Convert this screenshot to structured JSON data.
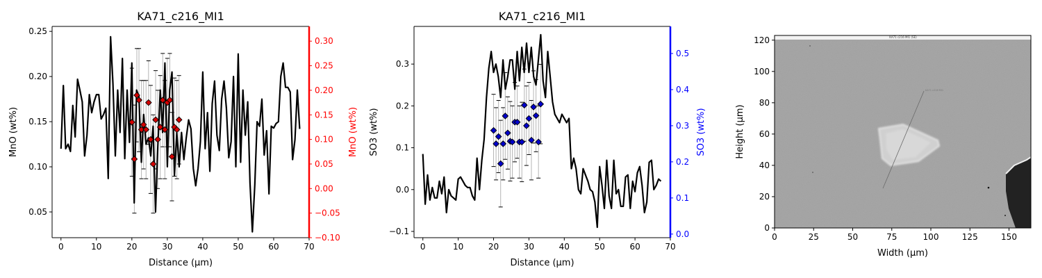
{
  "chart_data": [
    {
      "type": "line",
      "title": "KA71_c216_MI1",
      "xlabel": "Distance (µm)",
      "ylabel": "MnO (wt%)",
      "ylabel_right": "MnO (wt%)",
      "xlim": [
        -2.5,
        70
      ],
      "ylim": [
        0.0215,
        0.2555
      ],
      "ylim_right": [
        -0.1,
        0.33
      ],
      "xticks": [
        0,
        10,
        20,
        30,
        40,
        50,
        60,
        70
      ],
      "yticks": [
        0.05,
        0.1,
        0.15,
        0.2,
        0.25
      ],
      "yticks_right": [
        -0.1,
        -0.05,
        0.0,
        0.05,
        0.1,
        0.15,
        0.2,
        0.25,
        0.3
      ],
      "right_axis_color": "#ff0000",
      "line_color": "#000000",
      "marker_color": "#d40000",
      "marker": "diamond",
      "series": [
        {
          "axis": "left",
          "x": [
            0,
            0.67,
            1.33,
            2.0,
            2.67,
            3.33,
            4.0,
            4.67,
            5.33,
            6.0,
            6.67,
            7.33,
            8.0,
            8.67,
            9.33,
            10.0,
            10.67,
            11.33,
            12.0,
            12.67,
            13.33,
            14.0,
            14.67,
            15.33,
            16.0,
            16.67,
            17.33,
            18.0,
            18.67,
            19.33,
            20.0,
            20.67,
            21.33,
            22.0,
            22.67,
            23.33,
            24.0,
            24.67,
            25.33,
            26.0,
            26.67,
            27.33,
            28.0,
            28.67,
            29.33,
            30.0,
            30.67,
            31.33,
            32.0,
            32.67,
            33.33,
            34.0,
            34.67,
            35.33,
            36.0,
            36.67,
            37.33,
            38.0,
            38.67,
            39.33,
            40.0,
            40.67,
            41.33,
            42.0,
            42.67,
            43.33,
            44.0,
            44.67,
            45.33,
            46.0,
            46.67,
            47.33,
            48.0,
            48.67,
            49.33,
            50.0,
            50.67,
            51.33,
            52.0,
            52.67,
            53.33,
            54.0,
            54.67,
            55.33,
            56.0,
            56.67,
            57.33,
            58.0,
            58.67,
            59.33,
            60.0,
            60.67,
            61.33,
            62.0,
            62.67,
            63.33,
            64.0,
            64.67,
            65.33,
            66.0,
            66.67,
            67.33
          ],
          "y": [
            0.12,
            0.19,
            0.12,
            0.125,
            0.117,
            0.168,
            0.133,
            0.197,
            0.185,
            0.172,
            0.112,
            0.135,
            0.18,
            0.16,
            0.172,
            0.18,
            0.18,
            0.153,
            0.158,
            0.165,
            0.087,
            0.244,
            0.192,
            0.112,
            0.185,
            0.138,
            0.22,
            0.109,
            0.185,
            0.127,
            0.215,
            0.06,
            0.185,
            0.178,
            0.105,
            0.158,
            0.125,
            0.132,
            0.112,
            0.145,
            0.05,
            0.123,
            0.185,
            0.138,
            0.215,
            0.1,
            0.185,
            0.205,
            0.09,
            0.138,
            0.1,
            0.138,
            0.108,
            0.132,
            0.152,
            0.142,
            0.098,
            0.079,
            0.098,
            0.128,
            0.205,
            0.12,
            0.16,
            0.095,
            0.17,
            0.195,
            0.135,
            0.118,
            0.175,
            0.195,
            0.165,
            0.11,
            0.128,
            0.2,
            0.1,
            0.225,
            0.105,
            0.185,
            0.135,
            0.172,
            0.082,
            0.028,
            0.08,
            0.15,
            0.145,
            0.175,
            0.113,
            0.14,
            0.07,
            0.145,
            0.143,
            0.148,
            0.15,
            0.2,
            0.215,
            0.188,
            0.188,
            0.183,
            0.108,
            0.13,
            0.185,
            0.142
          ]
        },
        {
          "axis": "right",
          "x": [
            20.0,
            20.7,
            21.4,
            22.0,
            22.7,
            23.3,
            24.0,
            24.7,
            25.3,
            26.0,
            26.7,
            27.3,
            28.0,
            28.7,
            29.3,
            30.0,
            30.7,
            31.3,
            32.0,
            32.7,
            33.3
          ],
          "y": [
            0.135,
            0.06,
            0.19,
            0.18,
            0.12,
            0.13,
            0.12,
            0.175,
            0.1,
            0.05,
            0.14,
            0.1,
            0.125,
            0.18,
            0.12,
            0.175,
            0.18,
            0.065,
            0.125,
            0.12,
            0.14
          ],
          "err": [
            0.11,
            0.11,
            0.095,
            0.105,
            0.1,
            0.09,
            0.1,
            0.085,
            0.11,
            0.1,
            0.1,
            0.1,
            0.105,
            0.095,
            0.1,
            0.09,
            0.095,
            0.09,
            0.1,
            0.1,
            0.09
          ]
        }
      ]
    },
    {
      "type": "line",
      "title": "KA71_c216_MI1",
      "xlabel": "Distance (µm)",
      "ylabel": "SO3 (wt%)",
      "ylabel_right": "SO3 (wt%)",
      "xlim": [
        -2.5,
        70
      ],
      "ylim": [
        -0.115,
        0.39
      ],
      "ylim_right": [
        -0.01,
        0.575
      ],
      "xticks": [
        0,
        10,
        20,
        30,
        40,
        50,
        60,
        70
      ],
      "yticks": [
        -0.1,
        0.0,
        0.1,
        0.2,
        0.3
      ],
      "yticks_right": [
        0.0,
        0.1,
        0.2,
        0.3,
        0.4,
        0.5
      ],
      "right_axis_color": "#0000ff",
      "line_color": "#000000",
      "marker_color": "#0000cc",
      "marker": "diamond",
      "series": [
        {
          "axis": "left",
          "x": [
            0,
            0.67,
            1.33,
            2.0,
            2.67,
            3.33,
            4.0,
            4.67,
            5.33,
            6.0,
            6.67,
            7.33,
            8.0,
            8.67,
            9.33,
            10.0,
            10.67,
            11.33,
            12.0,
            12.67,
            13.33,
            14.0,
            14.67,
            15.33,
            16.0,
            16.67,
            17.33,
            18.0,
            18.67,
            19.33,
            20.0,
            20.67,
            21.33,
            22.0,
            22.67,
            23.33,
            24.0,
            24.67,
            25.33,
            26.0,
            26.67,
            27.33,
            28.0,
            28.67,
            29.33,
            30.0,
            30.67,
            31.33,
            32.0,
            32.67,
            33.33,
            34.0,
            34.67,
            35.33,
            36.0,
            36.67,
            37.33,
            38.0,
            38.67,
            39.33,
            40.0,
            40.67,
            41.33,
            42.0,
            42.67,
            43.33,
            44.0,
            44.67,
            45.33,
            46.0,
            46.67,
            47.33,
            48.0,
            48.67,
            49.33,
            50.0,
            50.67,
            51.33,
            52.0,
            52.67,
            53.33,
            54.0,
            54.67,
            55.33,
            56.0,
            56.67,
            57.33,
            58.0,
            58.67,
            59.33,
            60.0,
            60.67,
            61.33,
            62.0,
            62.67,
            63.33,
            64.0,
            64.67,
            65.33,
            66.0,
            66.67,
            67.33
          ],
          "y": [
            0.085,
            -0.035,
            0.035,
            -0.025,
            0.005,
            -0.02,
            -0.02,
            0.02,
            -0.01,
            0.03,
            -0.055,
            0.0,
            -0.015,
            -0.02,
            -0.025,
            0.025,
            0.03,
            0.02,
            0.01,
            0.005,
            0.005,
            -0.015,
            -0.025,
            0.075,
            0.0,
            0.07,
            0.12,
            0.22,
            0.29,
            0.33,
            0.28,
            0.3,
            0.27,
            0.22,
            0.31,
            0.24,
            0.27,
            0.31,
            0.31,
            0.24,
            0.33,
            0.26,
            0.34,
            0.28,
            0.35,
            0.28,
            0.34,
            0.27,
            0.25,
            0.31,
            0.37,
            0.26,
            0.22,
            0.33,
            0.27,
            0.21,
            0.18,
            0.17,
            0.16,
            0.18,
            0.17,
            0.16,
            0.17,
            0.05,
            0.075,
            0.05,
            0.0,
            -0.01,
            0.05,
            0.035,
            0.02,
            0.0,
            -0.005,
            -0.03,
            -0.09,
            0.055,
            0.01,
            -0.045,
            0.07,
            -0.015,
            -0.045,
            0.07,
            -0.01,
            0.0,
            -0.04,
            -0.04,
            0.03,
            0.035,
            -0.045,
            0.02,
            -0.005,
            0.04,
            0.055,
            0.01,
            -0.055,
            -0.03,
            0.065,
            0.07,
            0.0,
            0.01,
            0.025,
            0.02
          ]
        },
        {
          "axis": "right",
          "x": [
            20.0,
            20.7,
            21.4,
            22.0,
            22.7,
            23.3,
            24.0,
            24.7,
            25.3,
            26.0,
            26.7,
            27.3,
            28.0,
            28.7,
            29.3,
            30.0,
            30.7,
            31.3,
            32.0,
            32.7,
            33.3
          ],
          "y": [
            0.287,
            0.25,
            0.27,
            0.195,
            0.25,
            0.327,
            0.28,
            0.257,
            0.255,
            0.31,
            0.31,
            0.255,
            0.255,
            0.357,
            0.3,
            0.32,
            0.26,
            0.352,
            0.328,
            0.255,
            0.36
          ],
          "err": [
            0.1,
            0.1,
            0.1,
            0.12,
            0.1,
            0.12,
            0.1,
            0.11,
            0.1,
            0.11,
            0.1,
            0.1,
            0.11,
            0.1,
            0.11,
            0.1,
            0.11,
            0.1,
            0.1,
            0.1,
            0.11
          ]
        }
      ]
    },
    {
      "type": "image",
      "xlabel": "Width (µm)",
      "ylabel": "Height (µm)",
      "xlim": [
        0,
        164
      ],
      "ylim": [
        0,
        123
      ],
      "xticks": [
        0,
        25,
        50,
        75,
        100,
        125,
        150
      ],
      "yticks": [
        0,
        20,
        40,
        60,
        80,
        100,
        120
      ],
      "header_text": "KA71 c216 MI1 (SE)",
      "line_label": "KA71 c216 MI1",
      "colors": {
        "background": "#a0a0a0",
        "inclusion": "#d0d0d0",
        "hole": "#222222",
        "header": "#f2f2f2"
      }
    }
  ]
}
